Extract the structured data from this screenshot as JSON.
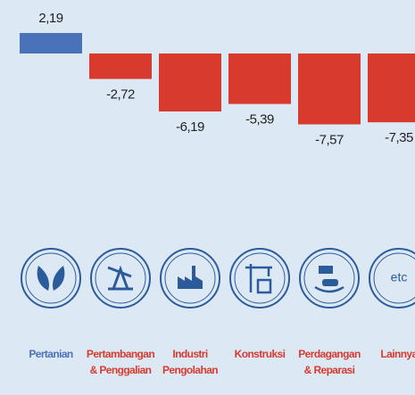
{
  "chart_data": {
    "type": "bar",
    "categories": [
      [
        "Pertanian"
      ],
      [
        "Pertambangan",
        "& Penggalian"
      ],
      [
        "Industri",
        "Pengolahan"
      ],
      [
        "Konstruksi"
      ],
      [
        "Perdagangan",
        "& Reparasi"
      ],
      [
        "Lainnya"
      ]
    ],
    "values": [
      2.19,
      -2.72,
      -6.19,
      -5.39,
      -7.57,
      -7.35
    ],
    "value_labels": [
      "2,19",
      "-2,72",
      "-6,19",
      "-5,39",
      "-7,57",
      "-7,35"
    ],
    "positive_color": "#4a72b8",
    "negative_color": "#d93a2e",
    "icon_text": "etc"
  }
}
